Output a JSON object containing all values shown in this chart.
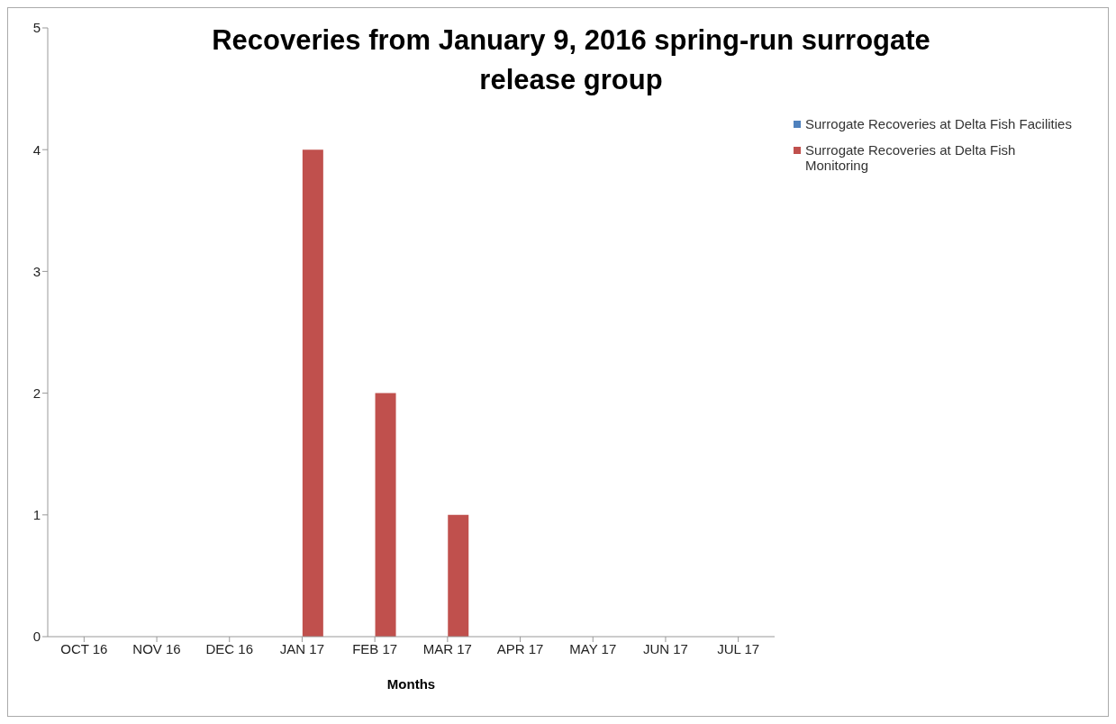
{
  "chart_data": {
    "type": "bar",
    "title": "Recoveries from January 9, 2016 spring-run surrogate release group",
    "xlabel": "Months",
    "categories": [
      "OCT 16",
      "NOV 16",
      "DEC 16",
      "JAN 17",
      "FEB 17",
      "MAR 17",
      "APR 17",
      "MAY 17",
      "JUN 17",
      "JUL 17"
    ],
    "series": [
      {
        "name": "Surrogate Recoveries at Delta Fish Facilities",
        "color": "#4f81bd",
        "values": [
          0,
          0,
          0,
          0,
          0,
          0,
          0,
          0,
          0,
          0
        ]
      },
      {
        "name": "Surrogate Recoveries at Delta Fish Monitoring",
        "color": "#c0504d",
        "values": [
          0,
          0,
          0,
          4,
          2,
          1,
          0,
          0,
          0,
          0
        ]
      }
    ],
    "ylim": [
      0,
      5
    ],
    "yticks": [
      0,
      1,
      2,
      3,
      4,
      5
    ],
    "grid": false,
    "legend": "top right"
  }
}
